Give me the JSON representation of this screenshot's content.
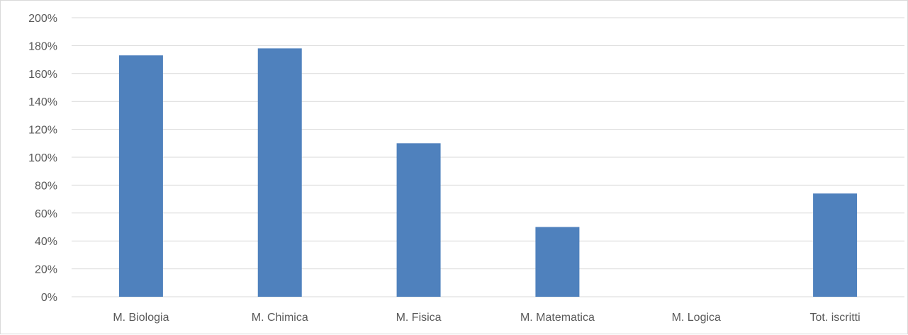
{
  "chart_data": {
    "type": "bar",
    "title": "",
    "xlabel": "",
    "ylabel": "",
    "categories": [
      "M. Biologia",
      "M. Chimica",
      "M. Fisica",
      "M. Matematica",
      "M. Logica",
      "Tot. iscritti"
    ],
    "values": [
      173,
      178,
      110,
      50,
      0,
      74
    ],
    "value_unit": "%",
    "ylim": [
      0,
      200
    ],
    "yticks": [
      0,
      20,
      40,
      60,
      80,
      100,
      120,
      140,
      160,
      180,
      200
    ],
    "ytick_labels": [
      "0%",
      "20%",
      "40%",
      "60%",
      "80%",
      "100%",
      "120%",
      "140%",
      "160%",
      "180%",
      "200%"
    ],
    "grid": true,
    "legend": "none",
    "colors": {
      "bar": "#4f81bd",
      "grid": "#d9d9d9",
      "text": "#595959"
    }
  }
}
